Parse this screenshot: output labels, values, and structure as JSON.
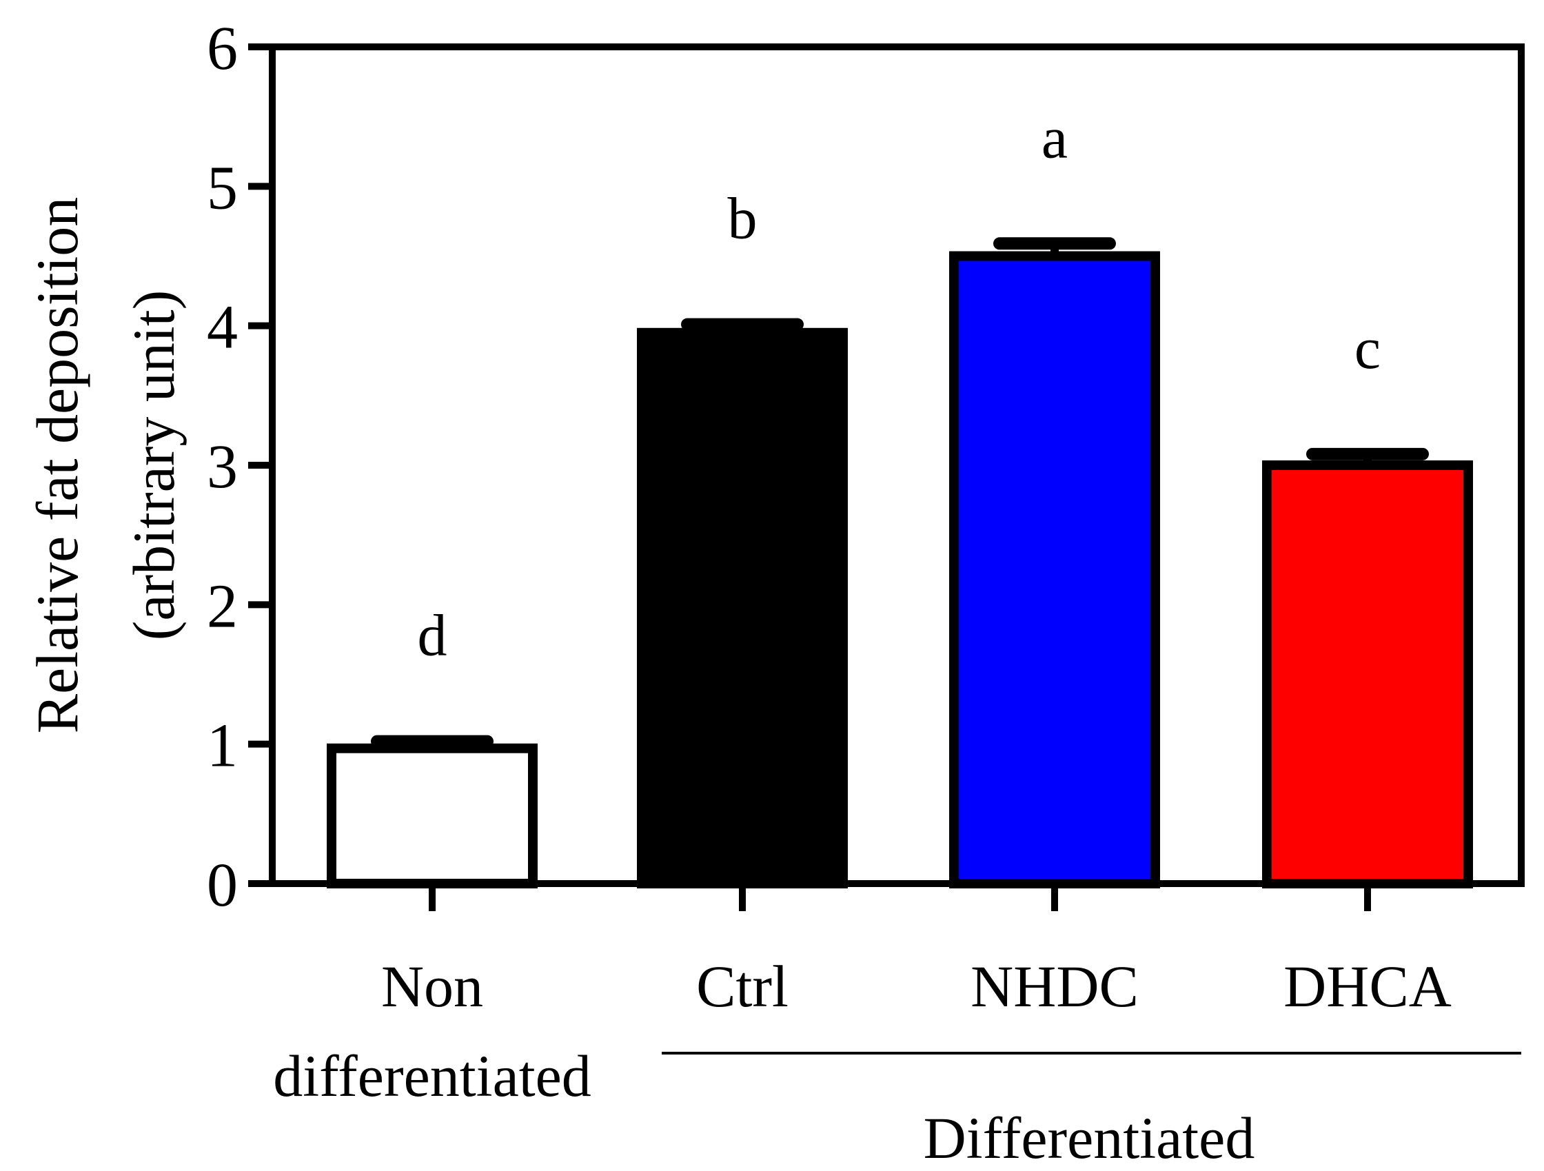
{
  "chart_data": {
    "type": "bar",
    "ylabel_lines": [
      "Relative fat deposition",
      "(arbitrary unit)"
    ],
    "xlabel": "",
    "ylim": [
      0,
      6
    ],
    "yticks": [
      "0",
      "1",
      "2",
      "3",
      "4",
      "5",
      "6"
    ],
    "categories": [
      "Non differentiated",
      "Ctrl",
      "NHDC",
      "DHCA"
    ],
    "category_label_lines": [
      [
        "Non",
        "differentiated"
      ],
      [
        "Ctrl"
      ],
      [
        "NHDC"
      ],
      [
        "DHCA"
      ]
    ],
    "values": [
      0.97,
      3.95,
      4.5,
      3.0
    ],
    "errors": [
      0.05,
      0.06,
      0.09,
      0.08
    ],
    "significance": [
      "d",
      "b",
      "a",
      "c"
    ],
    "colors": [
      "#ffffff",
      "#000000",
      "#0000ff",
      "#ff0000"
    ],
    "group_label": "Differentiated",
    "grid": false,
    "legend": "none"
  }
}
